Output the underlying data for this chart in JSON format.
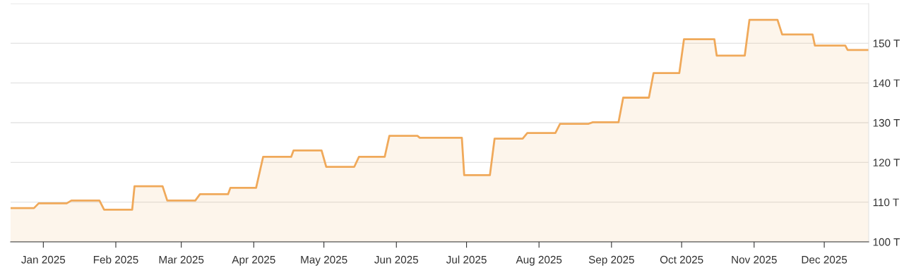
{
  "chart_data": {
    "type": "area",
    "x": [
      "2024-12-18",
      "2024-12-28",
      "2024-12-30",
      "2025-01-11",
      "2025-01-13",
      "2025-01-25",
      "2025-01-27",
      "2025-02-08",
      "2025-02-09",
      "2025-02-21",
      "2025-02-23",
      "2025-03-07",
      "2025-03-09",
      "2025-03-21",
      "2025-03-22",
      "2025-04-02",
      "2025-04-05",
      "2025-04-17",
      "2025-04-18",
      "2025-04-30",
      "2025-05-02",
      "2025-05-14",
      "2025-05-16",
      "2025-05-27",
      "2025-05-29",
      "2025-06-10",
      "2025-06-11",
      "2025-06-29",
      "2025-06-30",
      "2025-07-11",
      "2025-07-13",
      "2025-07-25",
      "2025-07-27",
      "2025-08-08",
      "2025-08-10",
      "2025-08-22",
      "2025-08-24",
      "2025-09-04",
      "2025-09-06",
      "2025-09-17",
      "2025-09-19",
      "2025-09-30",
      "2025-10-02",
      "2025-10-15",
      "2025-10-16",
      "2025-10-28",
      "2025-10-30",
      "2025-11-11",
      "2025-11-13",
      "2025-11-26",
      "2025-11-27",
      "2025-12-10",
      "2025-12-11",
      "2025-12-20"
    ],
    "series": [
      {
        "color": "#f0a95a",
        "values": [
          108.5,
          108.5,
          109.7,
          109.7,
          110.4,
          110.4,
          108.1,
          108.1,
          114.0,
          114.0,
          110.4,
          110.4,
          112.0,
          112.0,
          113.6,
          113.6,
          121.4,
          121.4,
          123.0,
          123.0,
          118.9,
          118.9,
          121.4,
          121.4,
          126.7,
          126.7,
          126.2,
          126.2,
          116.8,
          116.8,
          126.0,
          126.0,
          127.4,
          127.4,
          129.7,
          129.7,
          130.1,
          130.1,
          136.3,
          136.3,
          142.5,
          142.5,
          151.0,
          151.0,
          146.9,
          146.9,
          155.9,
          155.9,
          152.2,
          152.2,
          149.4,
          149.4,
          148.3,
          148.3
        ]
      }
    ],
    "xlim": [
      "2024-12-18",
      "2025-12-20"
    ],
    "xticks": [
      {
        "value": "2025-01-01",
        "label": "Jan 2025"
      },
      {
        "value": "2025-02-01",
        "label": "Feb 2025"
      },
      {
        "value": "2025-03-01",
        "label": "Mar 2025"
      },
      {
        "value": "2025-04-01",
        "label": "Apr 2025"
      },
      {
        "value": "2025-05-01",
        "label": "May 2025"
      },
      {
        "value": "2025-06-01",
        "label": "Jun 2025"
      },
      {
        "value": "2025-07-01",
        "label": "Jul 2025"
      },
      {
        "value": "2025-08-01",
        "label": "Aug 2025"
      },
      {
        "value": "2025-09-01",
        "label": "Sep 2025"
      },
      {
        "value": "2025-10-01",
        "label": "Oct 2025"
      },
      {
        "value": "2025-11-01",
        "label": "Nov 2025"
      },
      {
        "value": "2025-12-01",
        "label": "Dec 2025"
      }
    ],
    "ylim": [
      100,
      160
    ],
    "yticks": [
      {
        "value": 100,
        "label": "100 T"
      },
      {
        "value": 110,
        "label": "110 T"
      },
      {
        "value": 120,
        "label": "120 T"
      },
      {
        "value": 130,
        "label": "130 T"
      },
      {
        "value": 140,
        "label": "140 T"
      },
      {
        "value": 150,
        "label": "150 T"
      },
      {
        "value": 160,
        "label": null
      }
    ],
    "grid": "y",
    "marker": "none",
    "line_style": "solid"
  }
}
